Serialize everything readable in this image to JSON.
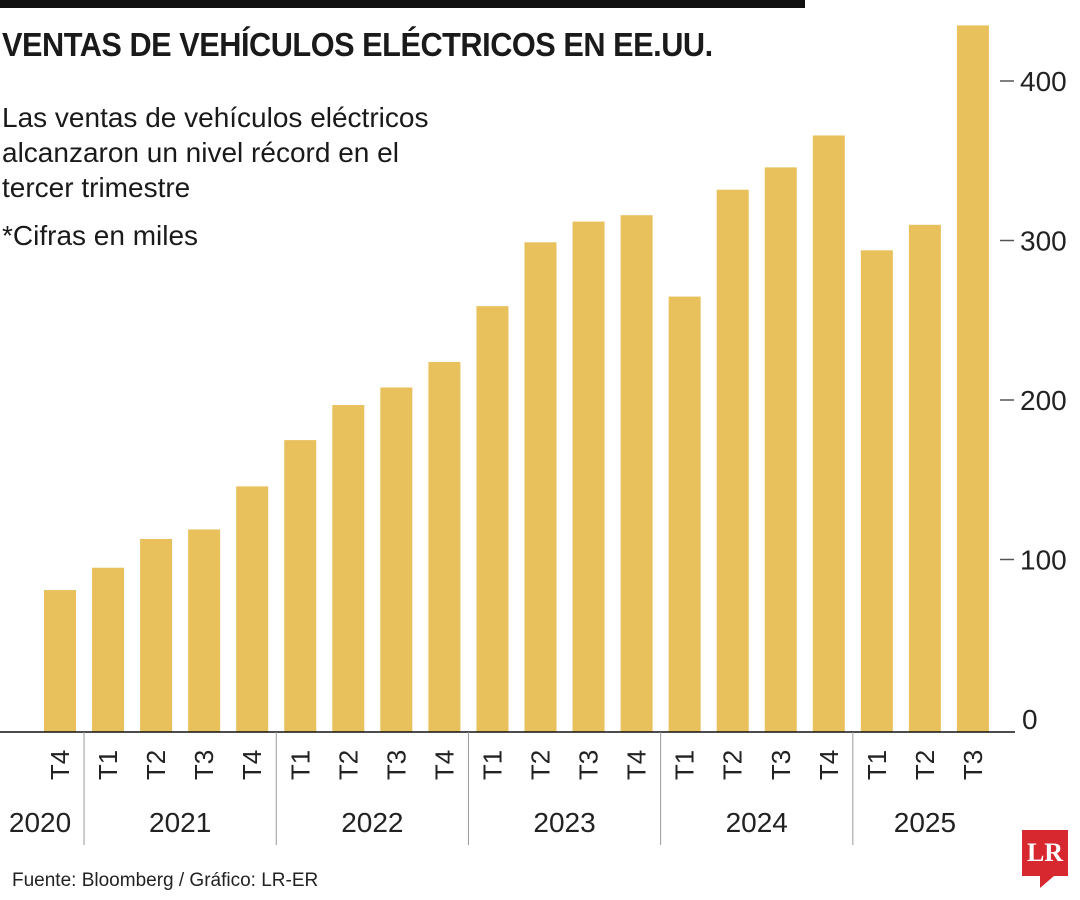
{
  "title": "VENTAS DE VEHÍCULOS ELÉCTRICOS EN EE.UU.",
  "subtitle": "Las ventas de vehículos eléctricos alcanzaron un nivel récord en el tercer trimestre",
  "note": "*Cifras en miles",
  "source": "Fuente: Bloomberg / Gráfico: LR-ER",
  "logo": "LR",
  "chart_data": {
    "type": "bar",
    "color": "#e8c05c",
    "categories": [
      "T4",
      "T1",
      "T2",
      "T3",
      "T4",
      "T1",
      "T2",
      "T3",
      "T4",
      "T1",
      "T2",
      "T3",
      "T4",
      "T1",
      "T2",
      "T3",
      "T4",
      "T1",
      "T2",
      "T3"
    ],
    "years": [
      {
        "label": "2020",
        "count": 1
      },
      {
        "label": "2021",
        "count": 4
      },
      {
        "label": "2022",
        "count": 4
      },
      {
        "label": "2023",
        "count": 4
      },
      {
        "label": "2024",
        "count": 4
      },
      {
        "label": "2025",
        "count": 3
      }
    ],
    "values": [
      89,
      103,
      121,
      127,
      154,
      183,
      205,
      216,
      232,
      267,
      307,
      320,
      324,
      273,
      340,
      354,
      374,
      302,
      318,
      443
    ],
    "ylim": [
      0,
      443
    ],
    "yticks": [
      "0",
      "100",
      "200",
      "300",
      "400"
    ],
    "axis_position": "right",
    "grid": false
  }
}
